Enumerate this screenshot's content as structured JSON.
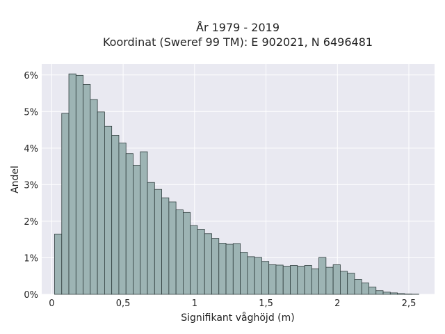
{
  "chart_data": {
    "type": "bar",
    "title_line1": "År 1979 - 2019",
    "title_line2": "Koordinat (Sweref 99 TM): E 902021, N 6496481",
    "xlabel": "Signifikant våghöjd (m)",
    "ylabel": "Andel",
    "bin_width": 0.05,
    "xlim": [
      -0.07,
      2.68
    ],
    "ylim": [
      0,
      6.3
    ],
    "x_ticks": [
      {
        "value": 0,
        "label": "0"
      },
      {
        "value": 0.5,
        "label": "0,5"
      },
      {
        "value": 1,
        "label": "1"
      },
      {
        "value": 1.5,
        "label": "1,5"
      },
      {
        "value": 2,
        "label": "2"
      },
      {
        "value": 2.5,
        "label": "2,5"
      }
    ],
    "y_ticks": [
      {
        "value": 0,
        "label": "0%"
      },
      {
        "value": 1,
        "label": "1%"
      },
      {
        "value": 2,
        "label": "2%"
      },
      {
        "value": 3,
        "label": "3%"
      },
      {
        "value": 4,
        "label": "4%"
      },
      {
        "value": 5,
        "label": "5%"
      },
      {
        "value": 6,
        "label": "6%"
      }
    ],
    "bins_start": [
      0.02,
      0.07,
      0.12,
      0.17,
      0.22,
      0.27,
      0.32,
      0.37,
      0.42,
      0.47,
      0.52,
      0.57,
      0.62,
      0.67,
      0.72,
      0.77,
      0.82,
      0.87,
      0.92,
      0.97,
      1.02,
      1.07,
      1.12,
      1.17,
      1.22,
      1.27,
      1.32,
      1.37,
      1.42,
      1.47,
      1.52,
      1.57,
      1.62,
      1.67,
      1.72,
      1.77,
      1.82,
      1.87,
      1.92,
      1.97,
      2.02,
      2.07,
      2.12,
      2.17,
      2.22,
      2.27,
      2.32,
      2.37,
      2.42,
      2.47,
      2.52
    ],
    "values": [
      1.65,
      4.95,
      6.03,
      5.99,
      5.74,
      5.33,
      4.99,
      4.6,
      4.35,
      4.14,
      3.85,
      3.53,
      3.9,
      3.06,
      2.87,
      2.64,
      2.53,
      2.31,
      2.24,
      1.88,
      1.78,
      1.66,
      1.53,
      1.4,
      1.37,
      1.39,
      1.15,
      1.03,
      1.01,
      0.9,
      0.81,
      0.8,
      0.77,
      0.79,
      0.77,
      0.79,
      0.7,
      1.01,
      0.74,
      0.81,
      0.63,
      0.58,
      0.41,
      0.31,
      0.2,
      0.1,
      0.06,
      0.04,
      0.02,
      0.01,
      0.005
    ],
    "colors": {
      "bar_fill": "#9db4b4",
      "bar_edge": "#2f3d3d",
      "plot_bg": "#e9e9f1",
      "grid": "#ffffff"
    },
    "grid": true,
    "legend": "none"
  }
}
